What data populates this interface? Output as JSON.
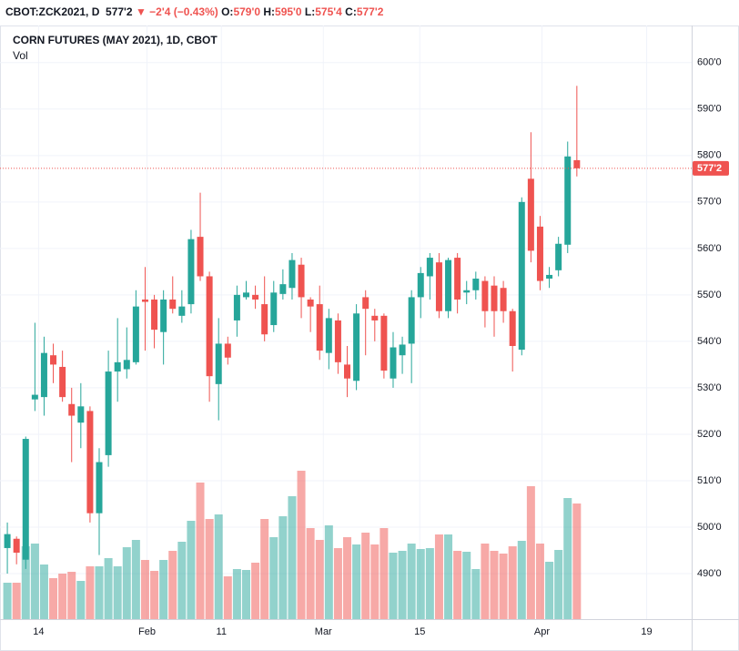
{
  "chart_data": {
    "type": "candlestick",
    "header": {
      "symbol": "CBOT:ZCK2021, D",
      "last": "577'2",
      "arrow": "▼",
      "change": "−2'4 (−0.43%)",
      "open_label": "O:",
      "open": "579'0",
      "high_label": "H:",
      "high": "595'0",
      "low_label": "L:",
      "low": "575'4",
      "close_label": "C:",
      "close": "577'2"
    },
    "title": "CORN FUTURES (MAY 2021), 1D, CBOT",
    "up_color": "#26a69a",
    "down_color": "#ef5350",
    "open": [
      495.5,
      497.5,
      493,
      527.5,
      528,
      537,
      534.5,
      526.5,
      522.5,
      525,
      503,
      515.5,
      533.5,
      534,
      535.5,
      549,
      549,
      542,
      549,
      545.5,
      548,
      562.5,
      554,
      530.8,
      539.5,
      544.5,
      549.5,
      550,
      548,
      543.5,
      550.2,
      551.5,
      556.5,
      549,
      548,
      537.5,
      544.5,
      535,
      531.5,
      549.5,
      545.5,
      545.5,
      532,
      537,
      539.5,
      549.5,
      554,
      557,
      546.5,
      558,
      550.5,
      551,
      553,
      552,
      551.5,
      546.5,
      538.2,
      575,
      564.7,
      553.5,
      555.3,
      560.8,
      579
    ],
    "high": [
      501,
      498,
      519.5,
      544,
      541,
      539.5,
      538,
      530,
      531,
      526,
      517,
      538,
      545,
      543,
      551,
      556,
      550,
      551,
      554,
      551,
      564,
      572,
      555,
      545,
      541,
      552,
      553,
      552,
      554,
      553,
      555.5,
      559,
      558,
      549.5,
      552,
      547,
      546,
      539,
      548,
      551,
      547,
      546,
      542,
      541,
      551,
      556,
      559,
      559,
      558,
      559,
      553,
      555,
      554,
      554,
      553,
      547,
      571,
      585,
      567,
      556,
      562.5,
      583,
      595
    ],
    "low": [
      490,
      492,
      491,
      525,
      524,
      531,
      527,
      514,
      517,
      501,
      494,
      513,
      527,
      532,
      535,
      538,
      538.5,
      535,
      546,
      544,
      546,
      553,
      527,
      523,
      535,
      541,
      549,
      547,
      540,
      542,
      549,
      549,
      545,
      542,
      536,
      534,
      533,
      528,
      529.5,
      537,
      540,
      532,
      530,
      533,
      531,
      545,
      549,
      545,
      545,
      546,
      548,
      549,
      543,
      541,
      544,
      533.5,
      537,
      557,
      551,
      551.5,
      554,
      559,
      575.5
    ],
    "close": [
      498.5,
      494.5,
      519,
      528.5,
      537.5,
      535,
      528,
      524,
      526,
      503,
      514,
      533.5,
      535.5,
      536,
      547.5,
      548.5,
      542.5,
      549,
      547,
      547.5,
      562,
      554,
      532.5,
      539.5,
      536.5,
      550,
      550.5,
      549,
      541.5,
      550.5,
      552.3,
      557.5,
      549.5,
      547.5,
      538,
      545,
      535.5,
      532,
      546,
      547,
      544.5,
      533.7,
      538.7,
      539.3,
      549.5,
      554.7,
      558,
      546.5,
      557.5,
      549,
      551,
      553.5,
      546.5,
      546.5,
      546.5,
      539,
      570,
      559.5,
      553,
      554.3,
      561,
      579.8,
      577.25
    ],
    "volume": {
      "label": "Vol",
      "values": [
        40,
        40,
        80,
        83,
        60,
        45,
        50,
        52,
        42,
        58,
        58,
        67,
        58,
        79,
        87,
        65,
        53,
        65,
        75,
        85,
        108,
        150,
        110,
        115,
        47,
        55,
        54,
        62,
        110,
        90,
        113,
        135,
        163,
        100,
        87,
        103,
        78,
        90,
        82,
        95,
        82,
        100,
        73,
        75,
        83,
        77,
        78,
        93,
        93,
        75,
        74,
        55,
        83,
        75,
        72,
        80,
        86,
        146,
        83,
        63,
        76,
        133,
        127
      ]
    },
    "last_price": {
      "value": 577.25,
      "label": "577'2"
    },
    "ylim": [
      480.2,
      607.6
    ],
    "yticks": [
      {
        "value": 490,
        "label": "490'0"
      },
      {
        "value": 500,
        "label": "500'0"
      },
      {
        "value": 510,
        "label": "510'0"
      },
      {
        "value": 520,
        "label": "520'0"
      },
      {
        "value": 530,
        "label": "530'0"
      },
      {
        "value": 540,
        "label": "540'0"
      },
      {
        "value": 550,
        "label": "550'0"
      },
      {
        "value": 560,
        "label": "560'0"
      },
      {
        "value": 570,
        "label": "570'0"
      },
      {
        "value": 580,
        "label": "580'0"
      },
      {
        "value": 590,
        "label": "590'0"
      },
      {
        "value": 600,
        "label": "600'0"
      }
    ],
    "xlim": [
      -0.8,
      74.5
    ],
    "xticks": [
      {
        "value": 3.4,
        "label": "14"
      },
      {
        "value": 15.2,
        "label": "Feb"
      },
      {
        "value": 23.3,
        "label": "11"
      },
      {
        "value": 34.4,
        "label": "Mar"
      },
      {
        "value": 44.9,
        "label": "15"
      },
      {
        "value": 58.2,
        "label": "Apr"
      },
      {
        "value": 69.6,
        "label": "19"
      }
    ],
    "grid": true
  }
}
